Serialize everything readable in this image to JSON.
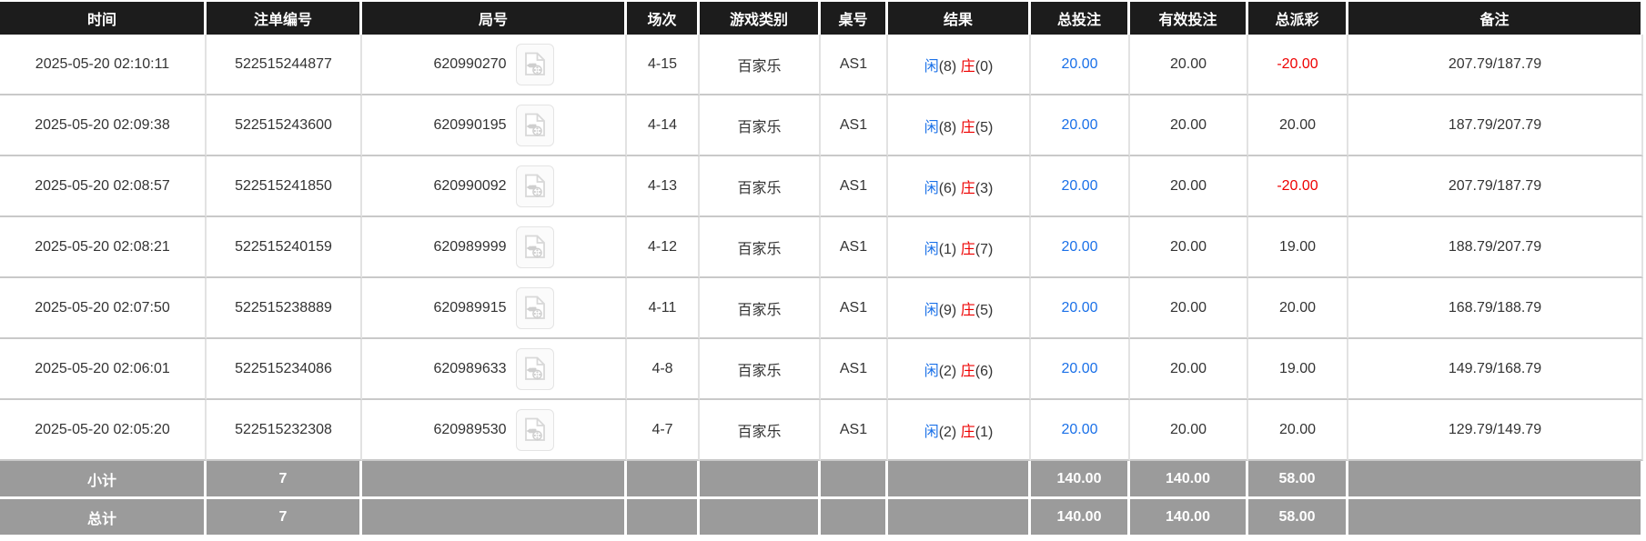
{
  "table": {
    "columns": [
      {
        "key": "time",
        "label": "时间"
      },
      {
        "key": "bet_id",
        "label": "注单编号"
      },
      {
        "key": "round_id",
        "label": "局号"
      },
      {
        "key": "session",
        "label": "场次"
      },
      {
        "key": "game",
        "label": "游戏类别"
      },
      {
        "key": "table_no",
        "label": "桌号"
      },
      {
        "key": "result",
        "label": "结果"
      },
      {
        "key": "total_bet",
        "label": "总投注"
      },
      {
        "key": "valid_bet",
        "label": "有效投注"
      },
      {
        "key": "payout",
        "label": "总派彩"
      },
      {
        "key": "remark",
        "label": "备注"
      }
    ],
    "result_labels": {
      "player": "闲",
      "banker": "庄"
    },
    "icons": {
      "round_cell": "video-replay-icon"
    },
    "rows": [
      {
        "time": "2025-05-20 02:10:11",
        "bet_id": "522515244877",
        "round_id": "620990270",
        "session": "4-15",
        "game": "百家乐",
        "table_no": "AS1",
        "player_pts": "(8)",
        "banker_pts": "(0)",
        "total_bet": "20.00",
        "valid_bet": "20.00",
        "payout": "-20.00",
        "remark": "207.79/187.79"
      },
      {
        "time": "2025-05-20 02:09:38",
        "bet_id": "522515243600",
        "round_id": "620990195",
        "session": "4-14",
        "game": "百家乐",
        "table_no": "AS1",
        "player_pts": "(8)",
        "banker_pts": "(5)",
        "total_bet": "20.00",
        "valid_bet": "20.00",
        "payout": "20.00",
        "remark": "187.79/207.79"
      },
      {
        "time": "2025-05-20 02:08:57",
        "bet_id": "522515241850",
        "round_id": "620990092",
        "session": "4-13",
        "game": "百家乐",
        "table_no": "AS1",
        "player_pts": "(6)",
        "banker_pts": "(3)",
        "total_bet": "20.00",
        "valid_bet": "20.00",
        "payout": "-20.00",
        "remark": "207.79/187.79"
      },
      {
        "time": "2025-05-20 02:08:21",
        "bet_id": "522515240159",
        "round_id": "620989999",
        "session": "4-12",
        "game": "百家乐",
        "table_no": "AS1",
        "player_pts": "(1)",
        "banker_pts": "(7)",
        "total_bet": "20.00",
        "valid_bet": "20.00",
        "payout": "19.00",
        "remark": "188.79/207.79"
      },
      {
        "time": "2025-05-20 02:07:50",
        "bet_id": "522515238889",
        "round_id": "620989915",
        "session": "4-11",
        "game": "百家乐",
        "table_no": "AS1",
        "player_pts": "(9)",
        "banker_pts": "(5)",
        "total_bet": "20.00",
        "valid_bet": "20.00",
        "payout": "20.00",
        "remark": "168.79/188.79"
      },
      {
        "time": "2025-05-20 02:06:01",
        "bet_id": "522515234086",
        "round_id": "620989633",
        "session": "4-8",
        "game": "百家乐",
        "table_no": "AS1",
        "player_pts": "(2)",
        "banker_pts": "(6)",
        "total_bet": "20.00",
        "valid_bet": "20.00",
        "payout": "19.00",
        "remark": "149.79/168.79"
      },
      {
        "time": "2025-05-20 02:05:20",
        "bet_id": "522515232308",
        "round_id": "620989530",
        "session": "4-7",
        "game": "百家乐",
        "table_no": "AS1",
        "player_pts": "(2)",
        "banker_pts": "(1)",
        "total_bet": "20.00",
        "valid_bet": "20.00",
        "payout": "20.00",
        "remark": "129.79/149.79"
      }
    ],
    "summary_rows": [
      {
        "label": "小计",
        "count": "7",
        "total_bet": "140.00",
        "valid_bet": "140.00",
        "payout": "58.00"
      },
      {
        "label": "总计",
        "count": "7",
        "total_bet": "140.00",
        "valid_bet": "140.00",
        "payout": "58.00"
      }
    ],
    "colors": {
      "header_bg": "#1c1c1c",
      "summary_bg": "#9b9b9b",
      "player_blue": "#1a70e8",
      "banker_red": "#ee0000",
      "bet_link_blue": "#1a70e8",
      "negative_red": "#ee0000"
    }
  }
}
